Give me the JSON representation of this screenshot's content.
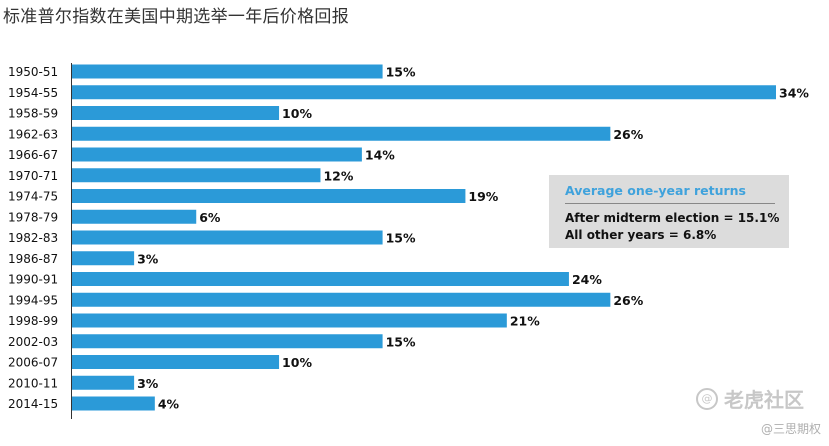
{
  "chart_data": {
    "type": "bar",
    "orientation": "horizontal",
    "title": "标准普尔指数在美国中期选举一年后价格回报",
    "categories": [
      "1950-51",
      "1954-55",
      "1958-59",
      "1962-63",
      "1966-67",
      "1970-71",
      "1974-75",
      "1978-79",
      "1982-83",
      "1986-87",
      "1990-91",
      "1994-95",
      "1998-99",
      "2002-03",
      "2006-07",
      "2010-11",
      "2014-15"
    ],
    "values": [
      15,
      34,
      10,
      26,
      14,
      12,
      19,
      6,
      15,
      3,
      24,
      26,
      21,
      15,
      10,
      3,
      4
    ],
    "value_labels": [
      "15%",
      "34%",
      "10%",
      "26%",
      "14%",
      "12%",
      "19%",
      "6%",
      "15%",
      "3%",
      "24%",
      "26%",
      "21%",
      "15%",
      "10%",
      "3%",
      "4%"
    ],
    "xlim": [
      0,
      34
    ],
    "xlabel": "",
    "ylabel": "",
    "grid": false,
    "bar_color": "#2b9ad8",
    "annotation": {
      "title": "Average one-year returns",
      "lines": [
        "After midterm election  = 15.1%",
        "All other years = 6.8%"
      ],
      "title_color": "#3fa2dc",
      "background": "#dcdcdc"
    }
  },
  "watermark": {
    "logo_glyph": "@",
    "brand": "老虎社区",
    "handle": "@三思期权"
  }
}
